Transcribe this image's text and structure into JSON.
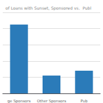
{
  "chart_data": {
    "type": "bar",
    "title": "of Loans with Sunset, Sponsored vs.  Publ",
    "categories": [
      "ge Sponsors",
      "Other Sponsors",
      "Pub"
    ],
    "values": [
      85,
      22,
      28
    ],
    "color": "#2b7bb9",
    "ylim": [
      0,
      100
    ],
    "yticks": [
      0,
      20,
      40,
      60,
      80,
      100
    ],
    "grid": true,
    "tick_labels": "x"
  }
}
